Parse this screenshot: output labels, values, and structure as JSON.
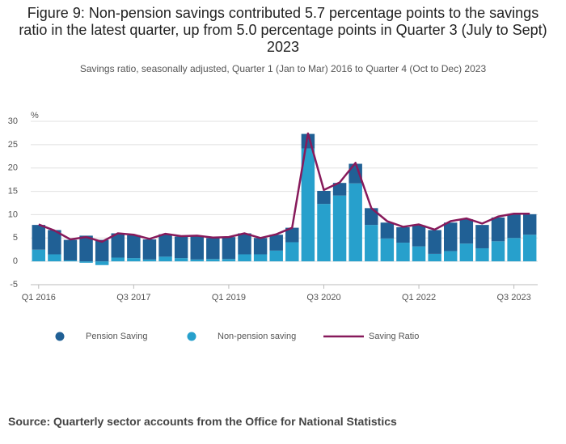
{
  "chart_data": {
    "type": "bar",
    "title": "Figure 9: Non-pension savings contributed 5.7 percentage points to the savings ratio in the latest quarter, up from 5.0 percentage points in Quarter 3 (July to Sept) 2023",
    "subtitle": "Savings ratio, seasonally adjusted, Quarter 1 (Jan to Mar) 2016 to Quarter 4 (Oct to Dec) 2023",
    "y_label": "%",
    "source": "Source: Quarterly sector accounts from the Office for National Statistics",
    "categories": [
      "Q1 2016",
      null,
      null,
      null,
      null,
      null,
      "Q3 2017",
      null,
      null,
      null,
      null,
      null,
      "Q1 2019",
      null,
      null,
      null,
      null,
      null,
      "Q3 2020",
      null,
      null,
      null,
      null,
      null,
      "Q1 2022",
      null,
      null,
      null,
      null,
      null,
      "Q3 2023",
      null
    ],
    "series": [
      {
        "name": "Pension Saving",
        "type": "bar",
        "color": "#206095",
        "values": [
          5.3,
          5.2,
          4.4,
          5.5,
          4.6,
          5.2,
          4.9,
          4.3,
          4.8,
          4.6,
          5.0,
          4.5,
          4.7,
          4.5,
          3.5,
          3.4,
          3.1,
          3.1,
          2.8,
          2.7,
          4.2,
          3.6,
          3.4,
          3.3,
          4.5,
          5.1,
          6.1,
          5.2,
          5.0,
          5.1,
          5.0,
          4.4
        ]
      },
      {
        "name": "Non-pension saving",
        "type": "bar",
        "color": "#27a0cc",
        "values": [
          2.5,
          1.5,
          0.2,
          -0.3,
          -0.8,
          0.8,
          0.7,
          0.4,
          1.0,
          0.7,
          0.4,
          0.5,
          0.5,
          1.5,
          1.5,
          2.3,
          4.1,
          24.2,
          12.3,
          14.1,
          16.7,
          7.8,
          4.9,
          4.0,
          3.2,
          1.6,
          2.2,
          3.8,
          2.8,
          4.3,
          5.0,
          5.7
        ]
      },
      {
        "name": "Saving Ratio",
        "type": "line",
        "color": "#871a5b",
        "values": [
          7.9,
          6.6,
          4.7,
          5.2,
          4.2,
          6.0,
          5.7,
          4.8,
          5.9,
          5.4,
          5.5,
          5.1,
          5.2,
          6.0,
          5.0,
          5.8,
          7.2,
          27.4,
          15.3,
          16.9,
          21.1,
          11.4,
          8.6,
          7.4,
          7.9,
          6.8,
          8.6,
          9.2,
          8.1,
          9.6,
          10.2,
          10.2
        ]
      }
    ],
    "ylim": [
      -5,
      30
    ],
    "yticks": [
      -5,
      0,
      5,
      10,
      15,
      20,
      25,
      30
    ],
    "grid": true
  }
}
